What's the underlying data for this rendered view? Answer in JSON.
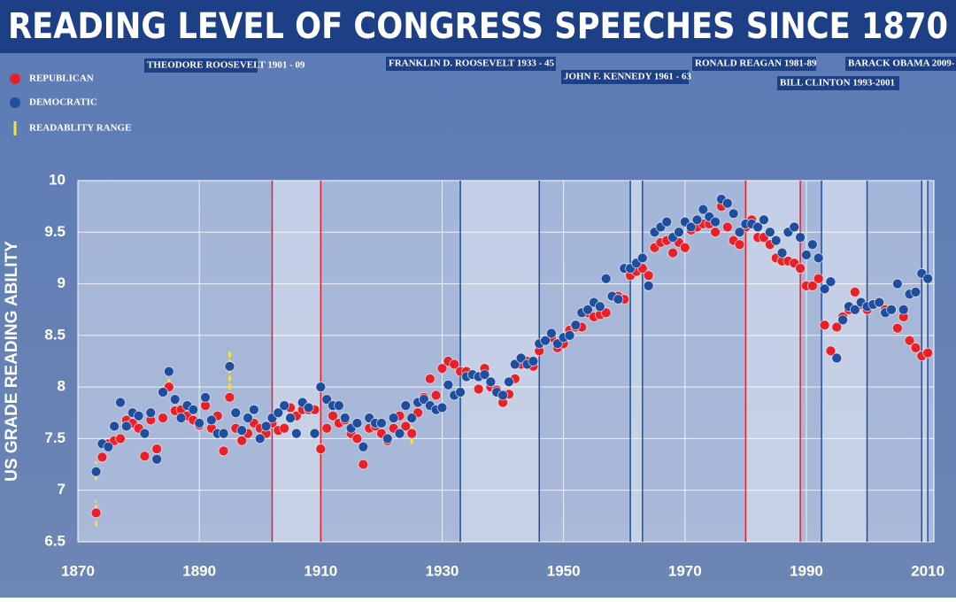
{
  "chart_data": {
    "type": "scatter",
    "title": "READING LEVEL OF CONGRESS SPEECHES SINCE 1870",
    "y_label": "US GRADE READING ABILITY",
    "x": [
      1873,
      1874,
      1875,
      1876,
      1877,
      1878,
      1879,
      1880,
      1881,
      1882,
      1883,
      1884,
      1885,
      1886,
      1887,
      1888,
      1889,
      1890,
      1891,
      1892,
      1893,
      1894,
      1895,
      1896,
      1897,
      1898,
      1899,
      1900,
      1901,
      1902,
      1903,
      1904,
      1905,
      1906,
      1907,
      1908,
      1909,
      1910,
      1911,
      1912,
      1913,
      1914,
      1915,
      1916,
      1917,
      1918,
      1919,
      1920,
      1921,
      1922,
      1923,
      1924,
      1925,
      1926,
      1927,
      1928,
      1929,
      1930,
      1931,
      1932,
      1933,
      1934,
      1935,
      1936,
      1937,
      1938,
      1939,
      1940,
      1941,
      1942,
      1943,
      1944,
      1945,
      1946,
      1947,
      1948,
      1949,
      1950,
      1951,
      1952,
      1953,
      1954,
      1955,
      1956,
      1957,
      1958,
      1959,
      1960,
      1961,
      1962,
      1963,
      1964,
      1965,
      1966,
      1967,
      1968,
      1969,
      1970,
      1971,
      1972,
      1973,
      1974,
      1975,
      1976,
      1977,
      1978,
      1979,
      1980,
      1981,
      1982,
      1983,
      1984,
      1985,
      1986,
      1987,
      1988,
      1989,
      1990,
      1991,
      1992,
      1993,
      1994,
      1995,
      1996,
      1997,
      1998,
      1999,
      2000,
      2001,
      2002,
      2003,
      2004,
      2005,
      2006,
      2007,
      2008,
      2009,
      2010
    ],
    "series": [
      {
        "name": "REPUBLICAN",
        "color": "#e8202a",
        "values": [
          6.78,
          7.32,
          7.45,
          7.48,
          7.5,
          7.68,
          7.65,
          7.6,
          7.33,
          7.68,
          7.4,
          7.7,
          8.0,
          7.77,
          7.78,
          7.72,
          7.68,
          7.63,
          7.82,
          7.6,
          7.72,
          7.38,
          7.9,
          7.6,
          7.48,
          7.55,
          7.65,
          7.6,
          7.55,
          7.65,
          7.58,
          7.6,
          7.8,
          7.72,
          7.78,
          7.78,
          7.78,
          7.4,
          7.6,
          7.72,
          7.65,
          7.68,
          7.55,
          7.5,
          7.25,
          7.6,
          7.62,
          7.55,
          7.48,
          7.6,
          7.72,
          7.62,
          7.55,
          7.75,
          7.9,
          8.08,
          7.92,
          8.18,
          8.25,
          8.22,
          8.15,
          8.15,
          8.12,
          7.98,
          8.18,
          8.0,
          7.97,
          7.85,
          7.93,
          8.08,
          8.22,
          8.25,
          8.2,
          8.35,
          8.45,
          8.48,
          8.38,
          8.42,
          8.55,
          8.58,
          8.58,
          8.72,
          8.68,
          8.7,
          8.72,
          8.88,
          8.88,
          8.85,
          9.08,
          9.12,
          9.15,
          9.08,
          9.35,
          9.4,
          9.42,
          9.3,
          9.4,
          9.35,
          9.52,
          9.55,
          9.58,
          9.58,
          9.5,
          9.75,
          9.55,
          9.42,
          9.38,
          9.55,
          9.62,
          9.45,
          9.45,
          9.38,
          9.25,
          9.22,
          9.22,
          9.2,
          9.15,
          8.98,
          8.98,
          9.05,
          8.6,
          8.35,
          8.58,
          8.68,
          8.75,
          8.92,
          8.8,
          8.75,
          8.8,
          8.82,
          8.75,
          8.75,
          8.57,
          8.68,
          8.45,
          8.38,
          8.3,
          8.33
        ]
      },
      {
        "name": "DEMOCRATIC",
        "color": "#1f4e9e",
        "values": [
          7.18,
          7.45,
          7.42,
          7.62,
          7.85,
          7.62,
          7.75,
          7.72,
          7.55,
          7.75,
          7.3,
          7.95,
          8.15,
          7.88,
          7.7,
          7.82,
          7.78,
          7.65,
          7.9,
          7.68,
          7.55,
          7.55,
          8.2,
          7.75,
          7.58,
          7.7,
          7.78,
          7.5,
          7.62,
          7.7,
          7.75,
          7.82,
          7.7,
          7.55,
          7.85,
          7.8,
          7.55,
          8.0,
          7.88,
          7.82,
          7.82,
          7.7,
          7.6,
          7.65,
          7.42,
          7.7,
          7.65,
          7.65,
          7.5,
          7.7,
          7.55,
          7.82,
          7.7,
          7.85,
          7.88,
          7.82,
          7.78,
          7.8,
          8.02,
          7.92,
          7.95,
          8.1,
          8.12,
          8.1,
          8.12,
          8.05,
          7.95,
          7.92,
          8.05,
          8.22,
          8.28,
          8.22,
          8.25,
          8.42,
          8.45,
          8.52,
          8.42,
          8.48,
          8.5,
          8.6,
          8.72,
          8.75,
          8.82,
          8.78,
          9.05,
          8.88,
          8.85,
          9.15,
          9.15,
          9.2,
          9.25,
          8.98,
          9.5,
          9.55,
          9.6,
          9.45,
          9.5,
          9.6,
          9.55,
          9.62,
          9.72,
          9.65,
          9.6,
          9.82,
          9.78,
          9.68,
          9.5,
          9.58,
          9.58,
          9.55,
          9.62,
          9.5,
          9.42,
          9.3,
          9.5,
          9.55,
          9.45,
          9.28,
          9.38,
          9.25,
          8.95,
          9.02,
          8.28,
          8.65,
          8.78,
          8.75,
          8.82,
          8.78,
          8.8,
          8.82,
          8.72,
          8.75,
          9.0,
          8.75,
          8.9,
          8.92,
          9.1,
          9.05
        ]
      }
    ],
    "range_legend": "READABLITY RANGE",
    "range_color": "#f5e13a",
    "ranges": [
      {
        "x": 1873,
        "low": 6.65,
        "high": 6.9
      },
      {
        "x": 1873,
        "low": 7.1,
        "high": 7.28
      },
      {
        "x": 1885,
        "low": 7.95,
        "high": 8.1
      },
      {
        "x": 1895,
        "low": 7.98,
        "high": 8.35
      },
      {
        "x": 1925,
        "low": 7.45,
        "high": 7.62
      }
    ],
    "presidencies": [
      {
        "label": "THEODORE ROOSEVELT 1901 - 09",
        "party": "REPUBLICAN",
        "start": 1902,
        "end": 1910
      },
      {
        "label": "FRANKLIN D. ROOSEVELT 1933 - 45",
        "party": "DEMOCRATIC",
        "start": 1933,
        "end": 1946
      },
      {
        "label": "JOHN F. KENNEDY 1961 - 63",
        "party": "DEMOCRATIC",
        "start": 1961,
        "end": 1963
      },
      {
        "label": "RONALD REAGAN 1981-89",
        "party": "REPUBLICAN",
        "start": 1980,
        "end": 1989
      },
      {
        "label": "BILL CLINTON 1993-2001",
        "party": "DEMOCRATIC",
        "start": 1992.5,
        "end": 2000
      },
      {
        "label": "BARACK OBAMA 2009-",
        "party": "DEMOCRATIC",
        "start": 2009,
        "end": 2010
      }
    ],
    "xlim": [
      1870,
      2011
    ],
    "ylim": [
      6.5,
      10
    ],
    "xticks": [
      1870,
      1890,
      1910,
      1930,
      1950,
      1970,
      1990,
      2010
    ],
    "yticks": [
      6.5,
      7,
      7.5,
      8,
      8.5,
      9,
      9.5,
      10
    ]
  }
}
